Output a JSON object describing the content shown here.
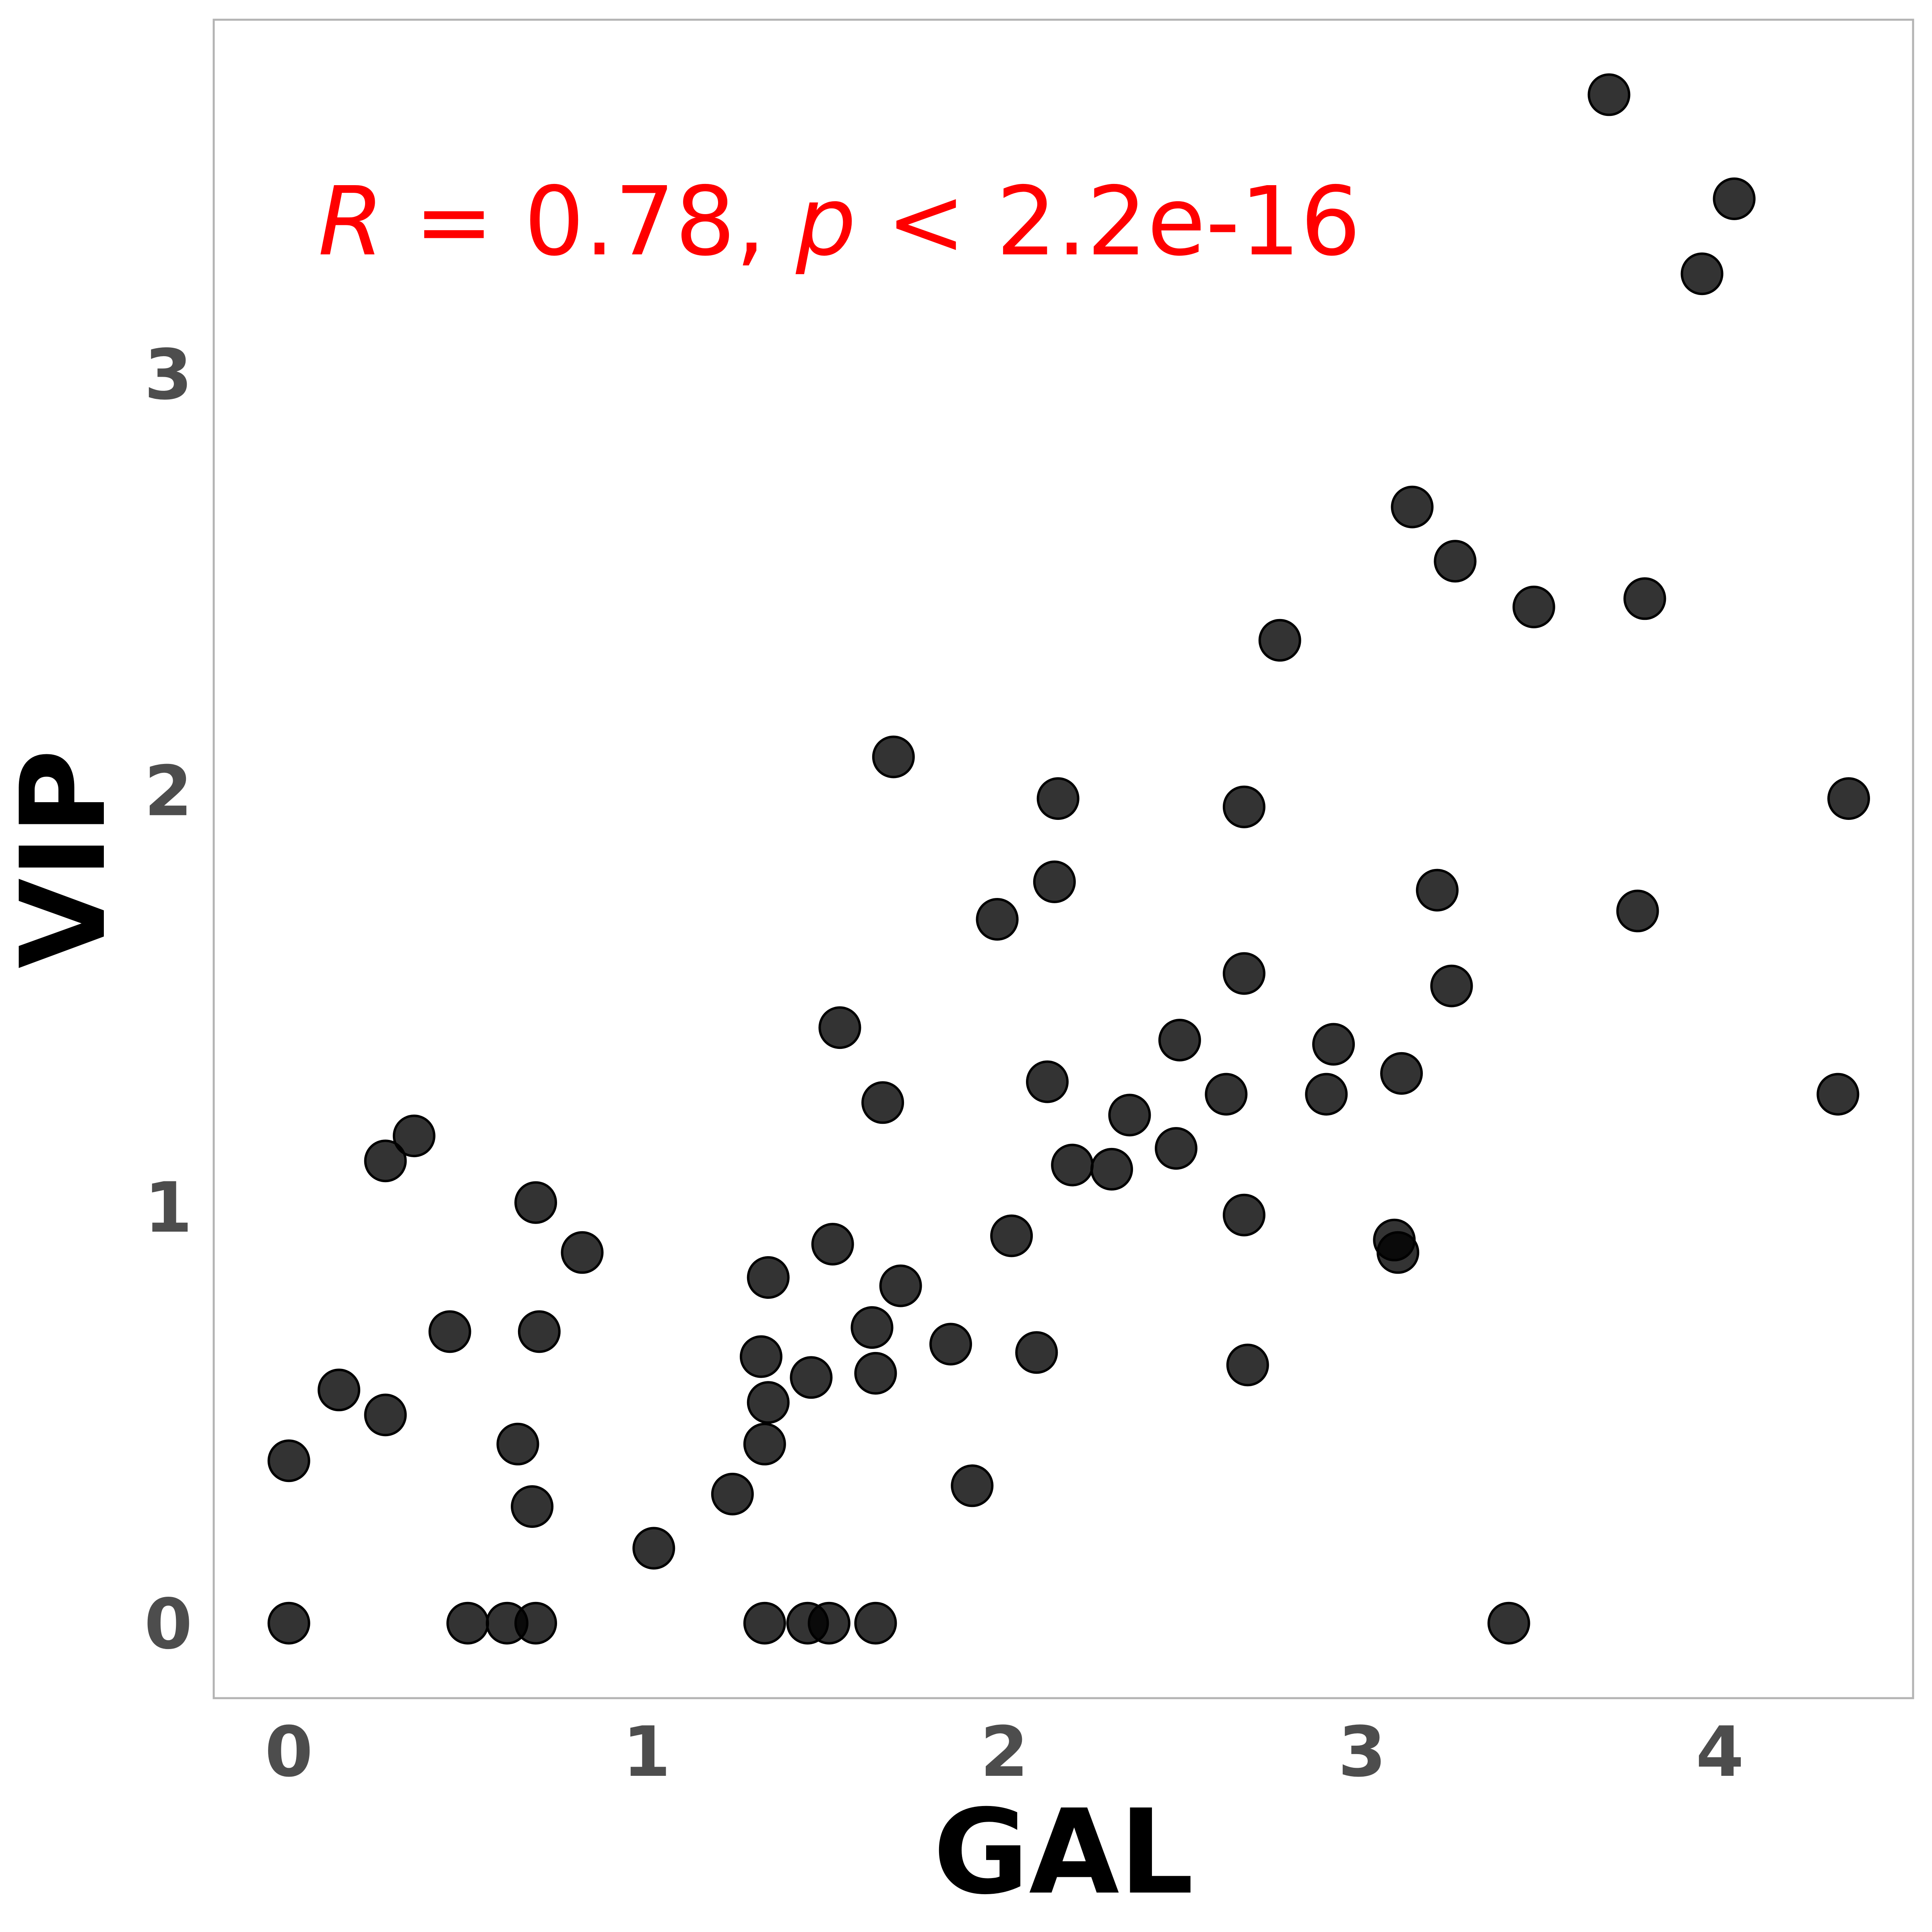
{
  "chart_data": {
    "type": "scatter",
    "xlabel": "GAL",
    "ylabel": "VIP",
    "xlim": [
      -0.21,
      4.54
    ],
    "ylim": [
      -0.18,
      3.85
    ],
    "x_ticks": [
      "0",
      "1",
      "2",
      "3",
      "4"
    ],
    "y_ticks": [
      "0",
      "1",
      "2",
      "3"
    ],
    "grid": false,
    "annotation": {
      "r_symbol": "R",
      "r_text": " = 0.78, ",
      "p_symbol": "p",
      "p_text": " < 2.2e-16"
    },
    "point_color": "#000000",
    "annotation_color": "#ff0000",
    "points": [
      {
        "x": 3.69,
        "y": 3.67
      },
      {
        "x": 4.04,
        "y": 3.42
      },
      {
        "x": 3.95,
        "y": 3.24
      },
      {
        "x": 3.14,
        "y": 2.68
      },
      {
        "x": 3.26,
        "y": 2.55
      },
      {
        "x": 3.48,
        "y": 2.44
      },
      {
        "x": 3.79,
        "y": 2.46
      },
      {
        "x": 2.77,
        "y": 2.36
      },
      {
        "x": 1.69,
        "y": 2.08
      },
      {
        "x": 2.15,
        "y": 1.98
      },
      {
        "x": 2.67,
        "y": 1.96
      },
      {
        "x": 4.36,
        "y": 1.98
      },
      {
        "x": 2.14,
        "y": 1.78
      },
      {
        "x": 3.21,
        "y": 1.76
      },
      {
        "x": 1.98,
        "y": 1.69
      },
      {
        "x": 3.77,
        "y": 1.71
      },
      {
        "x": 2.67,
        "y": 1.56
      },
      {
        "x": 3.25,
        "y": 1.53
      },
      {
        "x": 1.54,
        "y": 1.43
      },
      {
        "x": 2.49,
        "y": 1.4
      },
      {
        "x": 2.92,
        "y": 1.39
      },
      {
        "x": 2.12,
        "y": 1.3
      },
      {
        "x": 3.11,
        "y": 1.32
      },
      {
        "x": 2.62,
        "y": 1.27
      },
      {
        "x": 2.9,
        "y": 1.27
      },
      {
        "x": 4.33,
        "y": 1.27
      },
      {
        "x": 1.66,
        "y": 1.25
      },
      {
        "x": 2.35,
        "y": 1.22
      },
      {
        "x": 0.35,
        "y": 1.17
      },
      {
        "x": 0.27,
        "y": 1.11
      },
      {
        "x": 2.48,
        "y": 1.14
      },
      {
        "x": 2.19,
        "y": 1.1
      },
      {
        "x": 2.3,
        "y": 1.09
      },
      {
        "x": 0.69,
        "y": 1.01
      },
      {
        "x": 2.67,
        "y": 0.98
      },
      {
        "x": 2.02,
        "y": 0.93
      },
      {
        "x": 3.09,
        "y": 0.92
      },
      {
        "x": 3.1,
        "y": 0.89
      },
      {
        "x": 0.82,
        "y": 0.89
      },
      {
        "x": 1.52,
        "y": 0.91
      },
      {
        "x": 1.34,
        "y": 0.83
      },
      {
        "x": 1.71,
        "y": 0.81
      },
      {
        "x": 0.45,
        "y": 0.7
      },
      {
        "x": 0.7,
        "y": 0.7
      },
      {
        "x": 1.63,
        "y": 0.71
      },
      {
        "x": 1.85,
        "y": 0.67
      },
      {
        "x": 2.09,
        "y": 0.65
      },
      {
        "x": 1.32,
        "y": 0.64
      },
      {
        "x": 1.46,
        "y": 0.59
      },
      {
        "x": 1.64,
        "y": 0.6
      },
      {
        "x": 2.68,
        "y": 0.62
      },
      {
        "x": 0.14,
        "y": 0.56
      },
      {
        "x": 0.27,
        "y": 0.5
      },
      {
        "x": 1.34,
        "y": 0.53
      },
      {
        "x": 0.64,
        "y": 0.43
      },
      {
        "x": 1.33,
        "y": 0.43
      },
      {
        "x": 0.0,
        "y": 0.39
      },
      {
        "x": 0.68,
        "y": 0.28
      },
      {
        "x": 1.24,
        "y": 0.31
      },
      {
        "x": 1.91,
        "y": 0.33
      },
      {
        "x": 1.02,
        "y": 0.18
      },
      {
        "x": 0.0,
        "y": 0.0
      },
      {
        "x": 0.5,
        "y": 0.0
      },
      {
        "x": 0.61,
        "y": 0.0
      },
      {
        "x": 0.69,
        "y": 0.0
      },
      {
        "x": 1.33,
        "y": 0.0
      },
      {
        "x": 1.45,
        "y": 0.0
      },
      {
        "x": 1.51,
        "y": 0.0
      },
      {
        "x": 1.64,
        "y": 0.0
      },
      {
        "x": 3.41,
        "y": 0.0
      }
    ]
  }
}
